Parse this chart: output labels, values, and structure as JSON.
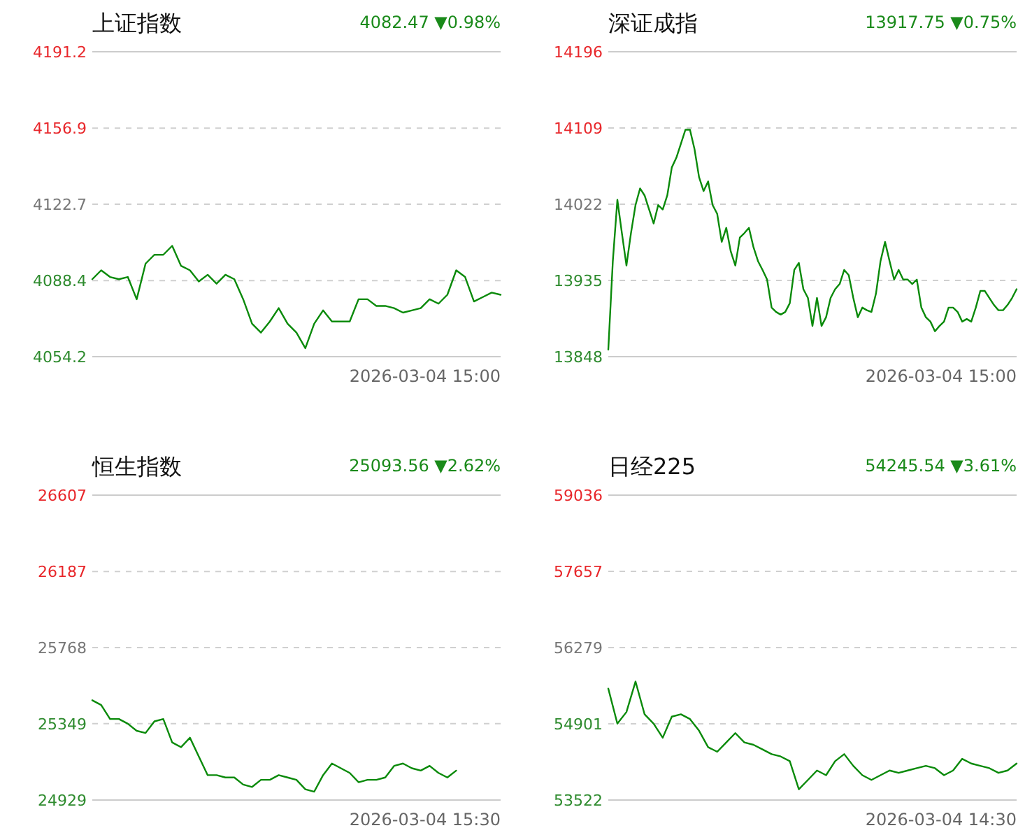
{
  "chart_data": [
    {
      "type": "line",
      "title": "上证指数",
      "subtitle": "4082.47 ▼0.98%",
      "annotations": [
        "2026-03-04 15:00"
      ],
      "grid": "y",
      "categories": [
        null,
        null,
        null,
        null,
        null,
        null,
        null,
        null,
        null,
        null,
        null,
        null,
        null,
        null,
        null,
        null,
        null,
        null,
        null,
        null,
        null,
        null,
        null,
        null,
        null,
        null,
        null,
        null,
        null,
        null,
        null,
        null,
        null,
        null,
        null,
        null,
        null,
        null,
        null,
        null,
        null,
        null,
        null,
        null,
        null,
        null,
        null
      ],
      "series": [
        {
          "color": "#0a8a0a",
          "values": [
            4089,
            4093,
            4090,
            4089,
            4090,
            4080,
            4096,
            4100,
            4100,
            4104,
            4095,
            4093,
            4088,
            4091,
            4087,
            4091,
            4089,
            4080,
            4069,
            4065,
            4070,
            4076,
            4069,
            4065,
            4058,
            4069,
            4075,
            4070,
            4070,
            4070,
            4080,
            4080,
            4077,
            4077,
            4076,
            4074,
            4075,
            4076,
            4080,
            4078,
            4082,
            4093,
            4090,
            4079,
            4081,
            4083,
            4082
          ]
        }
      ],
      "ylim": [
        4054.2,
        4191.2
      ],
      "yticks": [
        4054.2,
        4088.4,
        4122.7,
        4156.9,
        4191.2
      ]
    },
    {
      "type": "line",
      "title": "深证成指",
      "subtitle": "13917.75 ▼0.75%",
      "annotations": [
        "2026-03-04 15:00"
      ],
      "grid": "y",
      "categories": [
        null,
        null,
        null,
        null,
        null,
        null,
        null,
        null,
        null,
        null,
        null,
        null,
        null,
        null,
        null,
        null,
        null,
        null,
        null,
        null,
        null,
        null,
        null,
        null,
        null,
        null,
        null,
        null,
        null,
        null,
        null,
        null,
        null,
        null,
        null,
        null,
        null,
        null,
        null,
        null,
        null,
        null,
        null,
        null,
        null,
        null,
        null,
        null,
        null,
        null,
        null,
        null,
        null,
        null,
        null,
        null,
        null,
        null,
        null,
        null,
        null,
        null,
        null,
        null,
        null,
        null,
        null,
        null,
        null,
        null,
        null,
        null,
        null,
        null,
        null,
        null,
        null,
        null,
        null,
        null,
        null,
        null,
        null,
        null,
        null,
        null,
        null,
        null,
        null,
        null,
        null
      ],
      "series": [
        {
          "color": "#0a8a0a",
          "values": [
            13856,
            13957,
            14027,
            13989,
            13952,
            13989,
            14021,
            14040,
            14032,
            14016,
            14000,
            14021,
            14016,
            14032,
            14064,
            14075,
            14091,
            14107,
            14107,
            14085,
            14053,
            14037,
            14048,
            14021,
            14011,
            13979,
            13995,
            13968,
            13952,
            13984,
            13989,
            13995,
            13973,
            13957,
            13947,
            13936,
            13904,
            13899,
            13896,
            13899,
            13909,
            13947,
            13955,
            13925,
            13915,
            13883,
            13915,
            13883,
            13893,
            13915,
            13925,
            13931,
            13947,
            13941,
            13915,
            13893,
            13904,
            13901,
            13899,
            13920,
            13957,
            13979,
            13957,
            13936,
            13947,
            13936,
            13936,
            13931,
            13936,
            13904,
            13893,
            13888,
            13877,
            13883,
            13888,
            13904,
            13904,
            13899,
            13888,
            13891,
            13888,
            13904,
            13923,
            13923,
            13915,
            13907,
            13901,
            13901,
            13907,
            13915,
            13925
          ]
        }
      ],
      "ylim": [
        13848,
        14196
      ],
      "yticks": [
        13848,
        13935,
        14022,
        14109,
        14196
      ]
    },
    {
      "type": "line",
      "title": "恒生指数",
      "subtitle": "25093.56 ▼2.62%",
      "annotations": [
        "2026-03-04 15:30"
      ],
      "grid": "y",
      "categories": [
        null,
        null,
        null,
        null,
        null,
        null,
        null,
        null,
        null,
        null,
        null,
        null,
        null,
        null,
        null,
        null,
        null,
        null,
        null,
        null,
        null,
        null,
        null,
        null,
        null,
        null,
        null,
        null,
        null,
        null,
        null,
        null,
        null,
        null,
        null,
        null,
        null,
        null,
        null,
        null,
        null,
        null,
        null,
        null,
        null,
        null,
        null
      ],
      "series": [
        {
          "color": "#0a8a0a",
          "values": [
            25478,
            25452,
            25375,
            25375,
            25349,
            25310,
            25298,
            25362,
            25375,
            25246,
            25220,
            25272,
            25169,
            25066,
            25066,
            25053,
            25053,
            25014,
            25001,
            25040,
            25040,
            25066,
            25053,
            25040,
            24988,
            24975,
            25066,
            25130,
            25104,
            25078,
            25027,
            25040,
            25040,
            25053,
            25117,
            25130,
            25104,
            25091,
            25117,
            25078,
            25053,
            25091,
            null,
            null,
            null,
            null,
            null
          ]
        }
      ],
      "ylim": [
        24929,
        26607
      ],
      "yticks": [
        24929,
        25349,
        25768,
        26187,
        26607
      ]
    },
    {
      "type": "line",
      "title": "日经225",
      "subtitle": "54245.54 ▼3.61%",
      "annotations": [
        "2026-03-04 14:30"
      ],
      "grid": "y",
      "categories": [
        null,
        null,
        null,
        null,
        null,
        null,
        null,
        null,
        null,
        null,
        null,
        null,
        null,
        null,
        null,
        null,
        null,
        null,
        null,
        null,
        null,
        null,
        null,
        null,
        null,
        null,
        null,
        null,
        null,
        null,
        null,
        null,
        null,
        null,
        null,
        null,
        null,
        null,
        null,
        null,
        null,
        null,
        null,
        null,
        null,
        null
      ],
      "series": [
        {
          "color": "#0a8a0a",
          "values": [
            55538,
            54903,
            55114,
            55665,
            55072,
            54903,
            54649,
            55030,
            55072,
            54987,
            54776,
            54479,
            54394,
            54564,
            54733,
            54564,
            54521,
            54437,
            54352,
            54310,
            54225,
            53717,
            53886,
            54056,
            53971,
            54225,
            54352,
            54140,
            53971,
            53886,
            53971,
            54056,
            54013,
            54056,
            54098,
            54140,
            54098,
            53971,
            54056,
            54267,
            54183,
            54140,
            54098,
            54013,
            54056,
            54183
          ]
        }
      ],
      "ylim": [
        53522,
        59036
      ],
      "yticks": [
        53522,
        54901,
        56279,
        57657,
        59036
      ]
    }
  ]
}
